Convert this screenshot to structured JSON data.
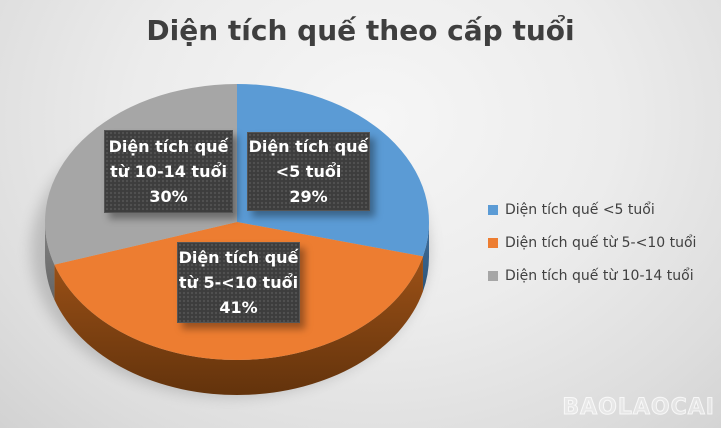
{
  "title": "Diện tích quế theo cấp tuổi",
  "watermark": "BAOLAOCAI",
  "chart_data": {
    "type": "pie",
    "style": "3d-pie",
    "title": "Diện tích quế theo cấp tuổi",
    "categories": [
      "Diện tích quế <5 tuổi",
      "Diện tích quế từ 5-<10 tuổi",
      "Diện tích quế từ 10-14 tuổi"
    ],
    "values": [
      29,
      41,
      30
    ],
    "unit": "%",
    "direction": "clockwise",
    "start_angle_deg": 0,
    "legend_position": "right",
    "colors": {
      "slices": [
        "#5B9BD5",
        "#ED7D31",
        "#A6A6A6"
      ],
      "slice_walls_top": [
        "#3E6F9E",
        "#9C5117",
        "#818181"
      ],
      "slice_walls_bottom": [
        "#2F5578",
        "#63330C",
        "#666666"
      ],
      "label_box_bg": "#3d3d3d",
      "label_text": "#ffffff",
      "title_text": "#3f3f3f"
    },
    "slice_labels": [
      {
        "lines": [
          "Diện tích quế",
          "<5 tuổi",
          "29%"
        ]
      },
      {
        "lines": [
          "Diện tích quế",
          "từ 5-<10 tuổi",
          "41%"
        ]
      },
      {
        "lines": [
          "Diện tích quế",
          "từ 10-14 tuổi",
          "30%"
        ]
      }
    ],
    "legend": [
      {
        "label": "Diện tích quế <5 tuổi",
        "color": "#5B9BD5"
      },
      {
        "label": "Diện tích quế từ 5-<10 tuổi",
        "color": "#ED7D31"
      },
      {
        "label": "Diện tích quế từ 10-14 tuổi",
        "color": "#A6A6A6"
      }
    ]
  }
}
